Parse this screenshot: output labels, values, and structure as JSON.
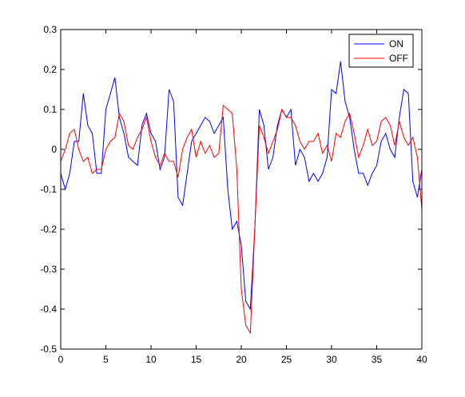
{
  "chart_data": {
    "type": "line",
    "xlim": [
      0,
      40
    ],
    "ylim": [
      -0.5,
      0.3
    ],
    "xticks": [
      0,
      5,
      10,
      15,
      20,
      25,
      30,
      35,
      40
    ],
    "xtick_labels": [
      "0",
      "5",
      "10",
      "15",
      "20",
      "25",
      "30",
      "35",
      "40"
    ],
    "yticks": [
      -0.5,
      -0.4,
      -0.3,
      -0.2,
      -0.1,
      0,
      0.1,
      0.2,
      0.3
    ],
    "ytick_labels": [
      "-0.5",
      "-0.4",
      "-0.3",
      "-0.2",
      "-0.1",
      "0",
      "0.1",
      "0.2",
      "0.3"
    ],
    "grid": false,
    "legend_position": "top-right",
    "series": [
      {
        "name": "ON",
        "color": "#0000ff",
        "x": [
          0,
          0.5,
          1,
          1.5,
          2,
          2.5,
          3,
          3.5,
          4,
          4.5,
          5,
          5.5,
          6,
          6.5,
          7,
          7.5,
          8,
          8.5,
          9,
          9.5,
          10,
          10.5,
          11,
          11.5,
          12,
          12.5,
          13,
          13.5,
          14,
          14.5,
          15,
          15.5,
          16,
          16.5,
          17,
          17.5,
          18,
          18.5,
          19,
          19.5,
          20,
          20.5,
          21,
          21.5,
          22,
          22.5,
          23,
          23.5,
          24,
          24.5,
          25,
          25.5,
          26,
          26.5,
          27,
          27.5,
          28,
          28.5,
          29,
          29.5,
          30,
          30.5,
          31,
          31.5,
          32,
          32.5,
          33,
          33.5,
          34,
          34.5,
          35,
          35.5,
          36,
          36.5,
          37,
          37.5,
          38,
          38.5,
          39,
          39.5,
          40
        ],
        "y": [
          -0.06,
          -0.1,
          -0.06,
          0.02,
          0.02,
          0.14,
          0.06,
          0.04,
          -0.06,
          -0.06,
          0.1,
          0.14,
          0.18,
          0.08,
          0.04,
          -0.02,
          -0.03,
          -0.04,
          0.06,
          0.09,
          0.04,
          0.02,
          -0.05,
          -0.02,
          0.15,
          0.12,
          -0.12,
          -0.14,
          -0.06,
          0.02,
          0.04,
          0.06,
          0.08,
          0.07,
          0.04,
          0.06,
          0.08,
          -0.1,
          -0.2,
          -0.18,
          -0.24,
          -0.38,
          -0.4,
          -0.2,
          0.1,
          0.06,
          -0.05,
          -0.02,
          0.06,
          0.1,
          0.08,
          0.1,
          -0.04,
          0,
          -0.02,
          -0.08,
          -0.06,
          -0.08,
          -0.06,
          -0.02,
          0.15,
          0.14,
          0.22,
          0.12,
          0.08,
          0.0,
          -0.06,
          -0.06,
          -0.09,
          -0.06,
          -0.04,
          0.02,
          0.04,
          0.0,
          -0.02,
          0.08,
          0.15,
          0.14,
          -0.08,
          -0.12,
          -0.05
        ]
      },
      {
        "name": "OFF",
        "color": "#ff0000",
        "x": [
          0,
          0.5,
          1,
          1.5,
          2,
          2.5,
          3,
          3.5,
          4,
          4.5,
          5,
          5.5,
          6,
          6.5,
          7,
          7.5,
          8,
          8.5,
          9,
          9.5,
          10,
          10.5,
          11,
          11.5,
          12,
          12.5,
          13,
          13.5,
          14,
          14.5,
          15,
          15.5,
          16,
          16.5,
          17,
          17.5,
          18,
          18.5,
          19,
          19.5,
          20,
          20.5,
          21,
          21.5,
          22,
          22.5,
          23,
          23.5,
          24,
          24.5,
          25,
          25.5,
          26,
          26.5,
          27,
          27.5,
          28,
          28.5,
          29,
          29.5,
          30,
          30.5,
          31,
          31.5,
          32,
          32.5,
          33,
          33.5,
          34,
          34.5,
          35,
          35.5,
          36,
          36.5,
          37,
          37.5,
          38,
          38.5,
          39,
          39.5,
          40
        ],
        "y": [
          -0.03,
          0.0,
          0.04,
          0.05,
          0.0,
          -0.03,
          -0.02,
          -0.06,
          -0.05,
          -0.05,
          0.0,
          0.02,
          0.03,
          0.09,
          0.07,
          0.01,
          0.0,
          0.03,
          0.05,
          0.08,
          0.02,
          -0.02,
          -0.04,
          -0.01,
          -0.03,
          -0.03,
          -0.07,
          0.0,
          0.03,
          0.05,
          -0.02,
          0.02,
          -0.01,
          0.01,
          -0.02,
          -0.01,
          0.11,
          0.1,
          0.09,
          -0.05,
          -0.35,
          -0.44,
          -0.46,
          -0.2,
          0.06,
          0.03,
          -0.01,
          0.02,
          0.05,
          0.1,
          0.08,
          0.08,
          0.06,
          0.02,
          0.0,
          0.02,
          0.02,
          0.04,
          -0.01,
          0.01,
          -0.03,
          0.04,
          0.03,
          0.07,
          0.09,
          0.04,
          -0.02,
          0.01,
          0.05,
          0.01,
          0.02,
          0.07,
          0.08,
          0.06,
          0.01,
          0.07,
          0.03,
          0.01,
          0.03,
          -0.02,
          -0.15
        ]
      }
    ]
  }
}
